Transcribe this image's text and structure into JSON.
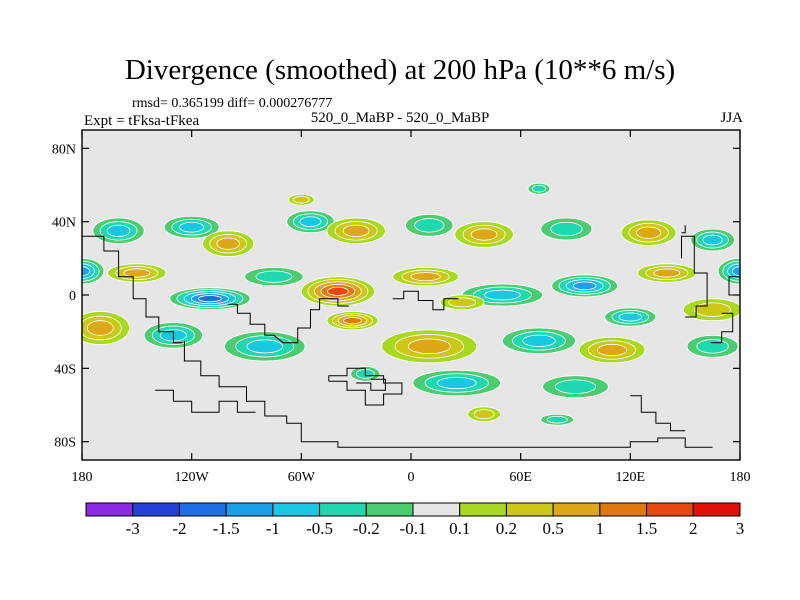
{
  "chart_data": {
    "type": "heatmap",
    "title": "Divergence (smoothed) at 200 hPa (10**6 m/s)",
    "stats_text": "rmsd= 0.365199 diff= 0.000276777",
    "left_label": "Expt = tFksa-tFkea",
    "center_label": "520_0_MaBP - 520_0_MaBP",
    "right_label": "JJA",
    "x_ticks": [
      {
        "value": -180,
        "label": "180"
      },
      {
        "value": -120,
        "label": "120W"
      },
      {
        "value": -60,
        "label": "60W"
      },
      {
        "value": 0,
        "label": "0"
      },
      {
        "value": 60,
        "label": "60E"
      },
      {
        "value": 120,
        "label": "120E"
      },
      {
        "value": 180,
        "label": "180"
      }
    ],
    "y_ticks": [
      {
        "value": 80,
        "label": "80N"
      },
      {
        "value": 40,
        "label": "40N"
      },
      {
        "value": 0,
        "label": "0"
      },
      {
        "value": -40,
        "label": "40S"
      },
      {
        "value": -80,
        "label": "80S"
      }
    ],
    "xlim": [
      -180,
      180
    ],
    "ylim": [
      -90,
      90
    ],
    "colorbar": {
      "labels": [
        "-3",
        "-2",
        "-1.5",
        "-1",
        "-0.5",
        "-0.2",
        "-0.1",
        "0.1",
        "0.2",
        "0.5",
        "1",
        "1.5",
        "2",
        "3"
      ],
      "colors": [
        "#8a2be2",
        "#2440d8",
        "#1e6ee6",
        "#1aa0e6",
        "#18c8e0",
        "#20d8b0",
        "#4ccc70",
        "#e6e6e6",
        "#a8d820",
        "#ccc818",
        "#dca818",
        "#e07810",
        "#e84810",
        "#e01008"
      ]
    },
    "blobs": [
      {
        "lon": -160,
        "lat": 35,
        "w": 14,
        "h": 7,
        "v": -0.6
      },
      {
        "lon": -120,
        "lat": 37,
        "w": 15,
        "h": 6,
        "v": -0.5
      },
      {
        "lon": -100,
        "lat": 28,
        "w": 14,
        "h": 7,
        "v": 0.9
      },
      {
        "lon": -55,
        "lat": 40,
        "w": 13,
        "h": 6,
        "v": -0.5
      },
      {
        "lon": -30,
        "lat": 35,
        "w": 16,
        "h": 7,
        "v": 0.6
      },
      {
        "lon": 10,
        "lat": 38,
        "w": 13,
        "h": 6,
        "v": -0.4
      },
      {
        "lon": 40,
        "lat": 33,
        "w": 16,
        "h": 7,
        "v": 0.6
      },
      {
        "lon": 85,
        "lat": 36,
        "w": 14,
        "h": 6,
        "v": -0.4
      },
      {
        "lon": 130,
        "lat": 34,
        "w": 15,
        "h": 7,
        "v": 0.6
      },
      {
        "lon": 165,
        "lat": 30,
        "w": 12,
        "h": 6,
        "v": -0.5
      },
      {
        "lon": 70,
        "lat": 58,
        "w": 6,
        "h": 3,
        "v": -0.2
      },
      {
        "lon": -60,
        "lat": 52,
        "w": 7,
        "h": 3,
        "v": 0.3
      },
      {
        "lon": 180,
        "lat": 13,
        "w": 12,
        "h": 7,
        "v": -1.1
      },
      {
        "lon": -180,
        "lat": 13,
        "w": 12,
        "h": 7,
        "v": -1.1
      },
      {
        "lon": -150,
        "lat": 12,
        "w": 16,
        "h": 5,
        "v": 0.6
      },
      {
        "lon": -110,
        "lat": -2,
        "w": 22,
        "h": 6,
        "v": -1.6
      },
      {
        "lon": -75,
        "lat": 10,
        "w": 16,
        "h": 5,
        "v": -0.3
      },
      {
        "lon": -40,
        "lat": 2,
        "w": 20,
        "h": 8,
        "v": 1.9
      },
      {
        "lon": -32,
        "lat": -14,
        "w": 14,
        "h": 5,
        "v": 1.3
      },
      {
        "lon": 8,
        "lat": 10,
        "w": 18,
        "h": 5,
        "v": 0.6
      },
      {
        "lon": 50,
        "lat": 0,
        "w": 22,
        "h": 6,
        "v": -0.6
      },
      {
        "lon": 28,
        "lat": -4,
        "w": 12,
        "h": 4,
        "v": 0.4
      },
      {
        "lon": 95,
        "lat": 5,
        "w": 18,
        "h": 6,
        "v": -1.1
      },
      {
        "lon": 120,
        "lat": -12,
        "w": 14,
        "h": 5,
        "v": -0.7
      },
      {
        "lon": 140,
        "lat": 12,
        "w": 16,
        "h": 5,
        "v": 0.6
      },
      {
        "lon": 165,
        "lat": -8,
        "w": 16,
        "h": 6,
        "v": 0.5
      },
      {
        "lon": -170,
        "lat": -18,
        "w": 16,
        "h": 9,
        "v": 0.8
      },
      {
        "lon": -130,
        "lat": -22,
        "w": 16,
        "h": 7,
        "v": -0.5
      },
      {
        "lon": -80,
        "lat": -28,
        "w": 22,
        "h": 8,
        "v": -0.8
      },
      {
        "lon": 10,
        "lat": -28,
        "w": 26,
        "h": 9,
        "v": 0.9
      },
      {
        "lon": 70,
        "lat": -25,
        "w": 20,
        "h": 7,
        "v": -0.5
      },
      {
        "lon": 110,
        "lat": -30,
        "w": 18,
        "h": 7,
        "v": 0.7
      },
      {
        "lon": 165,
        "lat": -28,
        "w": 14,
        "h": 6,
        "v": -0.4
      },
      {
        "lon": -25,
        "lat": -43,
        "w": 8,
        "h": 4,
        "v": -0.3
      },
      {
        "lon": 25,
        "lat": -48,
        "w": 24,
        "h": 7,
        "v": -0.6
      },
      {
        "lon": 90,
        "lat": -50,
        "w": 18,
        "h": 6,
        "v": -0.4
      },
      {
        "lon": 40,
        "lat": -65,
        "w": 9,
        "h": 4,
        "v": 0.4
      },
      {
        "lon": 80,
        "lat": -68,
        "w": 9,
        "h": 3,
        "v": -0.3
      }
    ]
  }
}
